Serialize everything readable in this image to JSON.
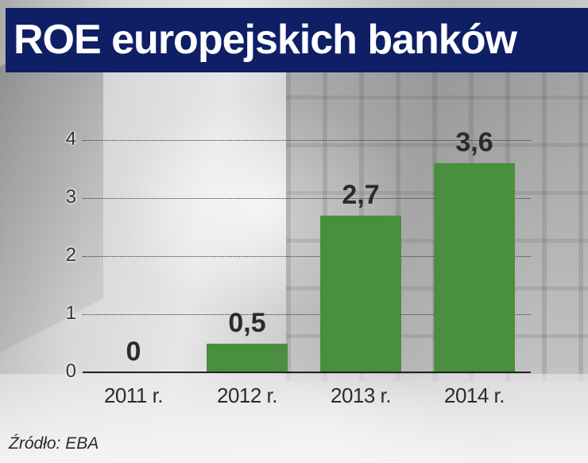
{
  "title": "ROE europejskich banków",
  "source": "Źródło: EBA",
  "colors": {
    "title_bg": "#0f1f66",
    "title_text": "#ffffff",
    "bar": "#4a8f3f",
    "text": "#2b2b2b"
  },
  "chart_data": {
    "type": "bar",
    "title": "ROE europejskich banków",
    "xlabel": "",
    "ylabel": "",
    "categories": [
      "2011 r.",
      "2012 r.",
      "2013 r.",
      "2014 r."
    ],
    "values": [
      0,
      0.5,
      2.7,
      3.6
    ],
    "value_labels": [
      "0",
      "0,5",
      "2,7",
      "3,6"
    ],
    "y_ticks": [
      "0",
      "1",
      "2",
      "3",
      "4"
    ],
    "ylim": [
      0,
      4
    ],
    "grid": "horizontal dotted",
    "legend": null,
    "source": "Źródło: EBA"
  }
}
